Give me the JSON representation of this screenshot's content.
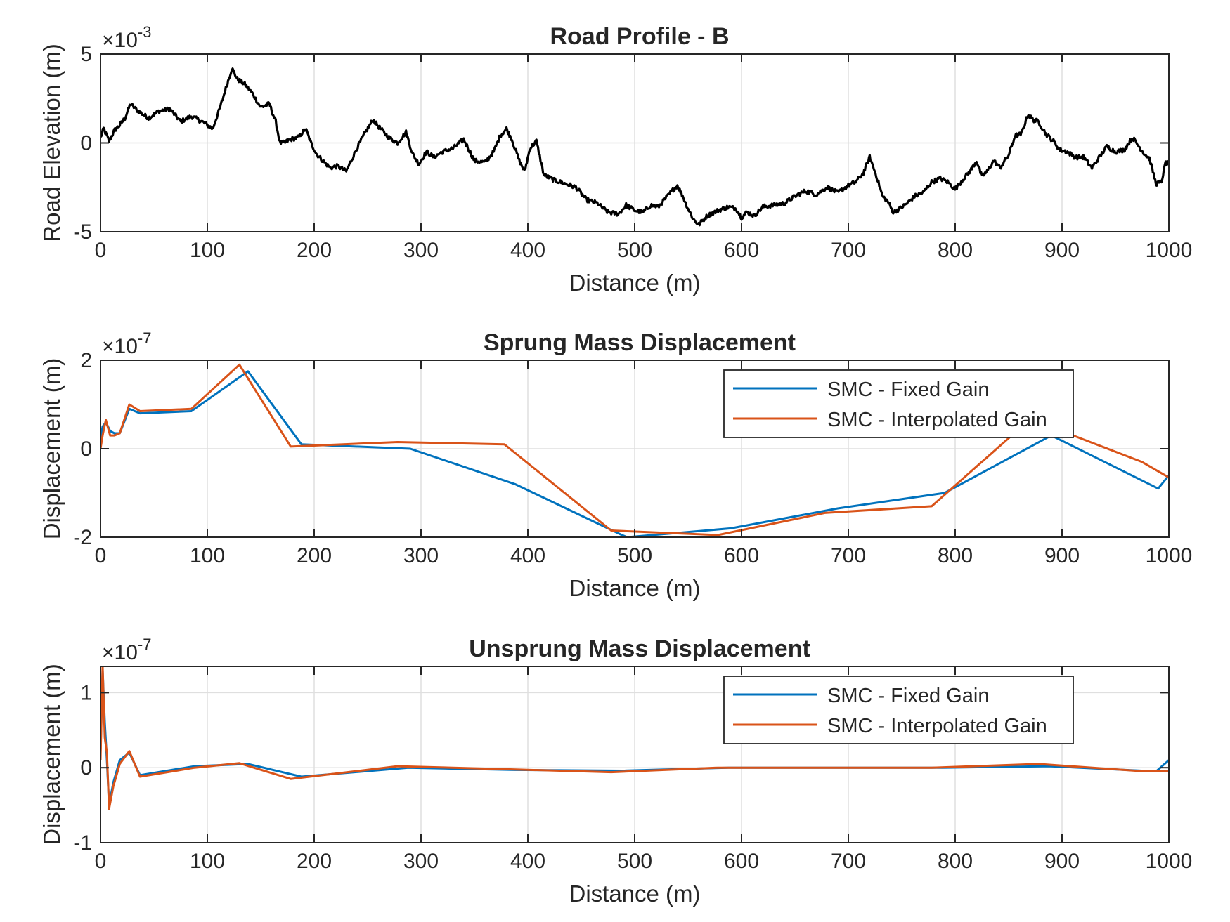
{
  "chart_data": [
    {
      "type": "line",
      "title": "Road Profile - B",
      "xlabel": "Distance (m)",
      "ylabel": "Road Elevation (m)",
      "exponent_label": "×10",
      "exponent_power": "-3",
      "xlim": [
        0,
        1000
      ],
      "ylim": [
        -5,
        5
      ],
      "xticks": [
        "0",
        "100",
        "200",
        "300",
        "400",
        "500",
        "600",
        "700",
        "800",
        "900",
        "1000"
      ],
      "yticks": [
        "-5",
        "0",
        "5"
      ],
      "grid": true,
      "legend": "none",
      "series": [
        {
          "color": "#000000",
          "noise": 0.25,
          "x": [
            0,
            3,
            8,
            13,
            18,
            23,
            28,
            35,
            45,
            55,
            65,
            75,
            85,
            95,
            105,
            112,
            118,
            123,
            128,
            135,
            142,
            150,
            158,
            164,
            168,
            172,
            178,
            185,
            192,
            197,
            202,
            208,
            215,
            222,
            230,
            240,
            248,
            255,
            262,
            270,
            278,
            286,
            292,
            298,
            305,
            312,
            320,
            330,
            340,
            350,
            360,
            368,
            374,
            380,
            385,
            392,
            397,
            402,
            408,
            415,
            425,
            435,
            445,
            455,
            465,
            475,
            485,
            492,
            500,
            508,
            515,
            522,
            528,
            535,
            540,
            545,
            550,
            555,
            560,
            568,
            578,
            588,
            595,
            600,
            605,
            612,
            620,
            630,
            640,
            650,
            660,
            670,
            680,
            690,
            700,
            707,
            714,
            720,
            726,
            732,
            737,
            742,
            748,
            755,
            762,
            770,
            778,
            786,
            793,
            800,
            808,
            815,
            820,
            825,
            830,
            836,
            842,
            850,
            856,
            862,
            868,
            873,
            878,
            885,
            892,
            898,
            905,
            912,
            920,
            928,
            935,
            942,
            950,
            958,
            966,
            972,
            977,
            982,
            988,
            993,
            997,
            1000
          ],
          "y": [
            0.3,
            0.8,
            0.1,
            0.7,
            1.0,
            1.4,
            2.2,
            1.8,
            1.4,
            1.8,
            1.9,
            1.2,
            1.5,
            1.2,
            0.8,
            2.0,
            3.2,
            4.2,
            3.6,
            3.3,
            2.8,
            2.0,
            2.2,
            1.2,
            0.0,
            0.0,
            0.2,
            0.3,
            0.8,
            0.0,
            -0.6,
            -1.0,
            -1.4,
            -1.3,
            -1.6,
            -0.3,
            0.6,
            1.3,
            0.8,
            0.3,
            0.0,
            0.6,
            -0.6,
            -1.2,
            -0.5,
            -0.8,
            -0.5,
            -0.3,
            0.2,
            -1.0,
            -1.1,
            -0.5,
            0.4,
            0.8,
            0.2,
            -1.0,
            -1.6,
            -0.3,
            0.1,
            -1.8,
            -2.1,
            -2.3,
            -2.5,
            -3.2,
            -3.4,
            -3.9,
            -4.0,
            -3.5,
            -3.8,
            -3.9,
            -3.5,
            -3.6,
            -3.2,
            -2.7,
            -2.4,
            -3.0,
            -3.7,
            -4.3,
            -4.6,
            -4.1,
            -3.8,
            -3.6,
            -3.7,
            -4.2,
            -3.9,
            -4.1,
            -3.6,
            -3.5,
            -3.4,
            -3.0,
            -2.7,
            -2.9,
            -2.5,
            -2.8,
            -2.4,
            -2.2,
            -1.7,
            -0.8,
            -1.8,
            -3.0,
            -3.3,
            -3.9,
            -3.7,
            -3.4,
            -3.0,
            -2.8,
            -2.2,
            -2.0,
            -2.2,
            -2.6,
            -2.0,
            -1.5,
            -1.0,
            -1.9,
            -1.6,
            -1.0,
            -1.4,
            -0.7,
            0.4,
            0.5,
            1.6,
            1.3,
            1.2,
            0.5,
            0.1,
            -0.4,
            -0.5,
            -0.8,
            -0.8,
            -1.4,
            -0.8,
            -0.2,
            -0.5,
            -0.4,
            0.3,
            -0.2,
            -0.6,
            -0.9,
            -2.3,
            -2.2,
            -1.1,
            -1.2
          ]
        }
      ]
    },
    {
      "type": "line",
      "title": "Sprung Mass Displacement",
      "xlabel": "Distance (m)",
      "ylabel": "Displacement (m)",
      "exponent_label": "×10",
      "exponent_power": "-7",
      "xlim": [
        0,
        1000
      ],
      "ylim": [
        -2,
        2
      ],
      "xticks": [
        "0",
        "100",
        "200",
        "300",
        "400",
        "500",
        "600",
        "700",
        "800",
        "900",
        "1000"
      ],
      "yticks": [
        "-2",
        "0",
        "2"
      ],
      "grid": true,
      "legend": "top-right",
      "series": [
        {
          "name": "SMC - Fixed Gain",
          "color": "#0072BD",
          "x": [
            0,
            2,
            5,
            9,
            13,
            18,
            27,
            37,
            85,
            138,
            188,
            290,
            388,
            488,
            493,
            590,
            690,
            790,
            890,
            990,
            1000
          ],
          "y": [
            0.2,
            0.5,
            0.6,
            0.4,
            0.35,
            0.35,
            0.9,
            0.8,
            0.85,
            1.75,
            0.1,
            0.0,
            -0.8,
            -1.95,
            -2.0,
            -1.8,
            -1.35,
            -1.0,
            0.3,
            -0.9,
            -0.6
          ]
        },
        {
          "name": "SMC - Interpolated Gain",
          "color": "#D95319",
          "x": [
            0,
            2,
            5,
            9,
            13,
            18,
            27,
            37,
            85,
            130,
            178,
            278,
            378,
            478,
            578,
            678,
            778,
            860,
            878,
            975,
            1000
          ],
          "y": [
            0.0,
            0.3,
            0.65,
            0.3,
            0.3,
            0.35,
            1.0,
            0.85,
            0.9,
            1.9,
            0.05,
            0.15,
            0.1,
            -1.85,
            -1.95,
            -1.45,
            -1.3,
            0.45,
            0.6,
            -0.3,
            -0.65
          ]
        }
      ]
    },
    {
      "type": "line",
      "title": "Unsprung Mass Displacement",
      "xlabel": "Distance (m)",
      "ylabel": "Displacement (m)",
      "exponent_label": "×10",
      "exponent_power": "-7",
      "xlim": [
        0,
        1000
      ],
      "ylim": [
        -1,
        1.35
      ],
      "xticks": [
        "0",
        "100",
        "200",
        "300",
        "400",
        "500",
        "600",
        "700",
        "800",
        "900",
        "1000"
      ],
      "yticks": [
        "-1",
        "0",
        "1"
      ],
      "grid": true,
      "legend": "top-right",
      "series": [
        {
          "name": "SMC - Fixed Gain",
          "color": "#0072BD",
          "x": [
            0,
            2,
            4,
            6,
            8,
            12,
            18,
            27,
            37,
            88,
            138,
            188,
            288,
            388,
            488,
            588,
            688,
            788,
            888,
            988,
            1000
          ],
          "y": [
            0.2,
            1.3,
            0.6,
            0.1,
            -0.5,
            -0.2,
            0.1,
            0.2,
            -0.1,
            0.02,
            0.05,
            -0.12,
            0.0,
            -0.03,
            -0.04,
            0.0,
            0.0,
            0.0,
            0.02,
            -0.05,
            0.1
          ]
        },
        {
          "name": "SMC - Interpolated Gain",
          "color": "#D95319",
          "x": [
            0,
            2,
            4,
            6,
            8,
            12,
            18,
            27,
            37,
            88,
            130,
            178,
            278,
            378,
            478,
            578,
            678,
            778,
            878,
            978,
            1000
          ],
          "y": [
            0.1,
            1.35,
            0.4,
            0.2,
            -0.55,
            -0.25,
            0.05,
            0.22,
            -0.12,
            0.0,
            0.06,
            -0.15,
            0.02,
            -0.02,
            -0.06,
            0.0,
            0.0,
            0.0,
            0.05,
            -0.05,
            -0.05
          ]
        }
      ]
    }
  ]
}
